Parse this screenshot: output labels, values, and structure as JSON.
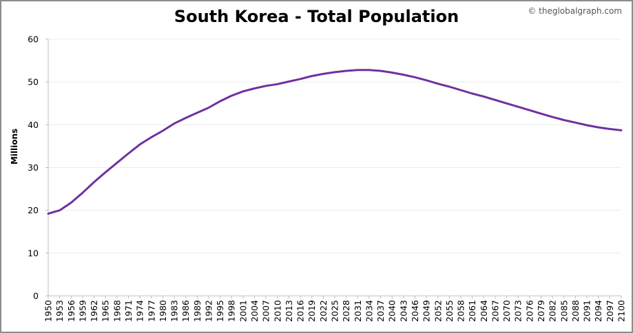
{
  "header": {
    "title": "South Korea - Total Population",
    "credit": "© theglobalgraph.com"
  },
  "chart_data": {
    "type": "line",
    "title": "South Korea - Total Population",
    "xlabel": "",
    "ylabel": "Millions",
    "ylim": [
      0,
      60
    ],
    "yticks": [
      0,
      10,
      20,
      30,
      40,
      50,
      60
    ],
    "xlim": [
      1950,
      2100
    ],
    "xticks": [
      1950,
      1953,
      1956,
      1959,
      1962,
      1965,
      1968,
      1971,
      1974,
      1977,
      1980,
      1983,
      1986,
      1989,
      1992,
      1995,
      1998,
      2001,
      2004,
      2007,
      2010,
      2013,
      2016,
      2019,
      2022,
      2025,
      2028,
      2031,
      2034,
      2037,
      2040,
      2043,
      2046,
      2049,
      2052,
      2055,
      2058,
      2061,
      2064,
      2067,
      2070,
      2073,
      2076,
      2079,
      2082,
      2085,
      2088,
      2091,
      2094,
      2097,
      2100
    ],
    "grid": true,
    "colors": {
      "line": "#7030a0",
      "grid": "#ececec",
      "axis": "#bdbdbd"
    },
    "series": [
      {
        "x": [
          1950,
          1953,
          1956,
          1959,
          1962,
          1965,
          1968,
          1971,
          1974,
          1977,
          1980,
          1983,
          1986,
          1989,
          1992,
          1995,
          1998,
          2001,
          2004,
          2007,
          2010,
          2013,
          2016,
          2019,
          2022,
          2025,
          2028,
          2031,
          2034,
          2037,
          2040,
          2043,
          2046,
          2049,
          2052,
          2055,
          2058,
          2061,
          2064,
          2067,
          2070,
          2073,
          2076,
          2079,
          2082,
          2085,
          2088,
          2091,
          2094,
          2097,
          2100
        ],
        "values": [
          19.2,
          20.0,
          21.8,
          24.1,
          26.6,
          28.9,
          31.1,
          33.3,
          35.4,
          37.1,
          38.6,
          40.3,
          41.6,
          42.8,
          44.0,
          45.5,
          46.8,
          47.8,
          48.5,
          49.1,
          49.5,
          50.1,
          50.7,
          51.4,
          51.9,
          52.3,
          52.6,
          52.8,
          52.8,
          52.6,
          52.2,
          51.7,
          51.1,
          50.4,
          49.6,
          48.9,
          48.1,
          47.3,
          46.6,
          45.8,
          45.0,
          44.2,
          43.4,
          42.6,
          41.8,
          41.1,
          40.5,
          39.9,
          39.4,
          39.0,
          38.7
        ]
      }
    ]
  }
}
